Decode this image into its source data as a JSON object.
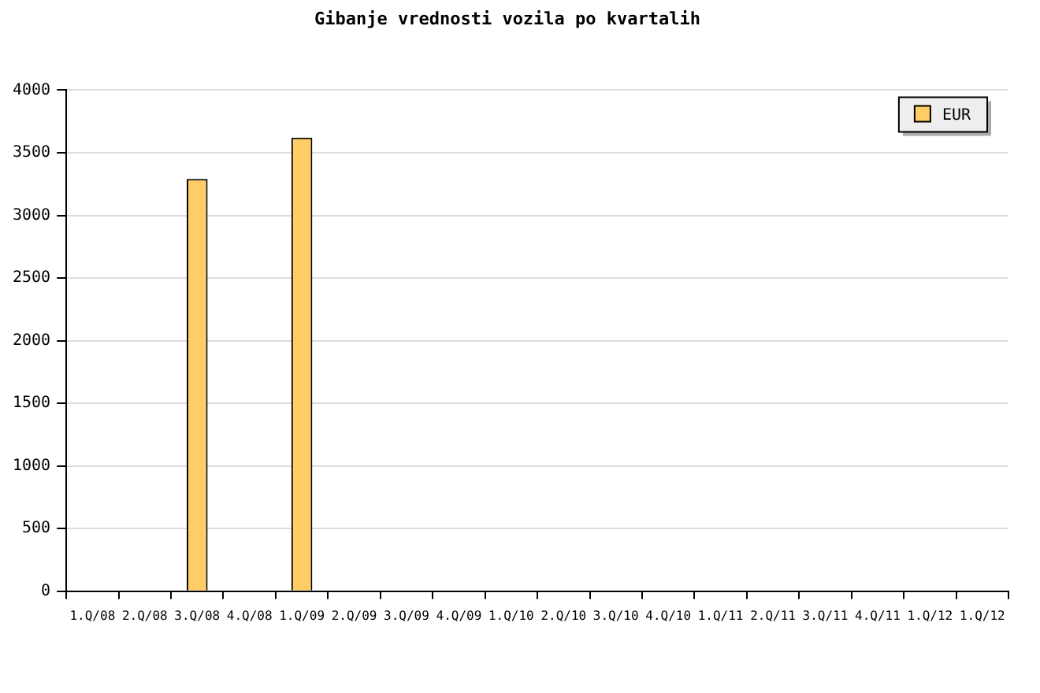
{
  "chart_data": {
    "type": "bar",
    "title": "Gibanje vrednosti vozila po kvartalih",
    "categories": [
      "1.Q/08",
      "2.Q/08",
      "3.Q/08",
      "4.Q/08",
      "1.Q/09",
      "2.Q/09",
      "3.Q/09",
      "4.Q/09",
      "1.Q/10",
      "2.Q/10",
      "3.Q/10",
      "4.Q/10",
      "1.Q/11",
      "2.Q/11",
      "3.Q/11",
      "4.Q/11",
      "1.Q/12",
      "1.Q/12"
    ],
    "series": [
      {
        "name": "EUR",
        "color": "#ffcc66",
        "values": [
          null,
          null,
          3290,
          null,
          3620,
          null,
          null,
          null,
          null,
          null,
          null,
          null,
          null,
          null,
          null,
          null,
          null,
          null
        ]
      }
    ],
    "ylim": [
      0,
      4000
    ],
    "yticks": [
      0,
      500,
      1000,
      1500,
      2000,
      2500,
      3000,
      3500,
      4000
    ],
    "grid": "y",
    "legend": "top right"
  }
}
